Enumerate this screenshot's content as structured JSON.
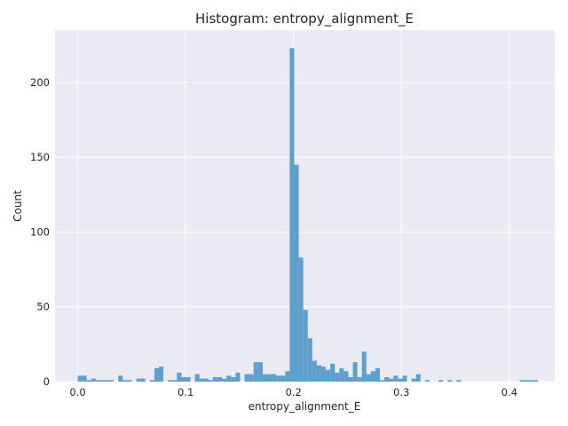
{
  "chart_data": {
    "type": "histogram",
    "title": "Histogram: entropy_alignment_E",
    "xlabel": "entropy_alignment_E",
    "ylabel": "Count",
    "xlim": [
      -0.021,
      0.442
    ],
    "ylim": [
      0,
      235
    ],
    "grid": true,
    "x_ticks": [
      "0.0",
      "0.1",
      "0.2",
      "0.3",
      "0.4"
    ],
    "x_tick_values": [
      0.0,
      0.1,
      0.2,
      0.3,
      0.4
    ],
    "y_ticks": [
      "0",
      "50",
      "100",
      "150",
      "200"
    ],
    "y_tick_values": [
      0,
      50,
      100,
      150,
      200
    ],
    "bar_color": "#5f9fcb",
    "bins": {
      "start": 0.0,
      "width": 0.00418,
      "counts": [
        4,
        4,
        1,
        2,
        1,
        1,
        1,
        1,
        0,
        4,
        1,
        1,
        0,
        2,
        2,
        0,
        1,
        9,
        10,
        0,
        1,
        1,
        6,
        3,
        3,
        0,
        5,
        2,
        2,
        1,
        3,
        3,
        2,
        4,
        3,
        6,
        0,
        5,
        5,
        13,
        13,
        5,
        5,
        5,
        4,
        4,
        7,
        223,
        145,
        83,
        48,
        29,
        14,
        11,
        10,
        8,
        12,
        6,
        9,
        7,
        3,
        13,
        3,
        20,
        5,
        7,
        9,
        1,
        3,
        2,
        4,
        2,
        4,
        0,
        2,
        5,
        0,
        1,
        0,
        0,
        1,
        0,
        1,
        0,
        1,
        0,
        0,
        0,
        0,
        0,
        0,
        0,
        0,
        0,
        0,
        0,
        0,
        0,
        1,
        1,
        1,
        1
      ]
    }
  }
}
